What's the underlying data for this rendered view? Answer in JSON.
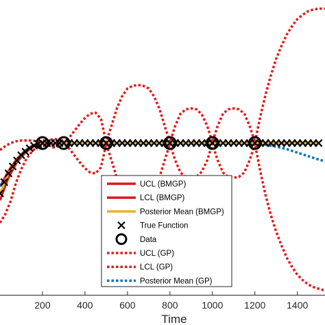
{
  "chart_data": {
    "type": "line",
    "title": "",
    "xlabel": "Time",
    "ylabel": "",
    "xlim": [
      0,
      1530
    ],
    "xticks": [
      200,
      400,
      600,
      800,
      1000,
      1200,
      1400
    ],
    "grid": false,
    "legend_location": "bottom-center",
    "data_x": [
      0,
      50,
      100,
      150,
      200,
      300,
      500,
      650,
      800,
      1000,
      1200,
      1500
    ],
    "series": [
      {
        "name": "UCL (BMGP)",
        "color": "#d7191c",
        "style": "solid",
        "x": [
          0,
          40,
          80,
          120,
          160,
          200,
          250,
          300,
          350,
          400,
          450,
          500,
          550,
          600,
          650,
          700,
          750,
          800,
          850,
          900,
          950,
          1000,
          1050,
          1100,
          1150,
          1200,
          1250,
          1300,
          1350,
          1400,
          1450,
          1500
        ],
        "values": [
          0.3,
          0.48,
          0.62,
          0.72,
          0.78,
          0.8,
          0.8,
          0.8,
          0.8,
          0.8,
          0.8,
          0.8,
          0.8,
          0.8,
          0.8,
          0.8,
          0.8,
          0.8,
          0.8,
          0.8,
          0.8,
          0.8,
          0.8,
          0.8,
          0.8,
          0.8,
          0.8,
          0.8,
          0.8,
          0.8,
          0.8,
          0.8
        ]
      },
      {
        "name": "LCL (BMGP)",
        "color": "#d7191c",
        "style": "solid",
        "x": [
          0,
          40,
          80,
          120,
          160,
          200,
          250,
          300,
          350,
          400,
          450,
          500,
          550,
          600,
          650,
          700,
          750,
          800,
          850,
          900,
          950,
          1000,
          1050,
          1100,
          1150,
          1200,
          1250,
          1300,
          1350,
          1400,
          1450,
          1500
        ],
        "values": [
          0.14,
          0.4,
          0.58,
          0.69,
          0.765,
          0.8,
          0.8,
          0.8,
          0.8,
          0.8,
          0.8,
          0.8,
          0.8,
          0.8,
          0.8,
          0.8,
          0.8,
          0.8,
          0.8,
          0.8,
          0.8,
          0.8,
          0.8,
          0.8,
          0.8,
          0.8,
          0.8,
          0.8,
          0.8,
          0.8,
          0.8,
          0.8
        ]
      },
      {
        "name": "Posterior Mean (BMGP)",
        "color": "#edb120",
        "style": "solid",
        "x": [
          0,
          40,
          80,
          120,
          160,
          200,
          250,
          300,
          400,
          500,
          650,
          800,
          1000,
          1200,
          1350,
          1500
        ],
        "values": [
          0.22,
          0.45,
          0.6,
          0.7,
          0.77,
          0.8,
          0.8,
          0.8,
          0.8,
          0.8,
          0.8,
          0.8,
          0.8,
          0.8,
          0.8,
          0.8
        ]
      },
      {
        "name": "True Function",
        "color": "#000000",
        "style": "marker-x",
        "x": [
          0,
          20,
          40,
          60,
          80,
          100,
          120,
          140,
          160,
          180,
          200,
          220,
          240,
          260,
          280,
          300,
          325,
          350,
          375,
          400,
          425,
          450,
          475,
          500,
          525,
          550,
          575,
          600,
          625,
          650,
          675,
          700,
          725,
          750,
          775,
          800,
          825,
          850,
          875,
          900,
          925,
          950,
          975,
          1000,
          1025,
          1050,
          1075,
          1100,
          1125,
          1150,
          1175,
          1200,
          1225,
          1250,
          1275,
          1300,
          1325,
          1350,
          1375,
          1400,
          1425,
          1450,
          1475,
          1500
        ],
        "values": [
          0.22,
          0.35,
          0.45,
          0.53,
          0.6,
          0.66,
          0.7,
          0.74,
          0.77,
          0.79,
          0.8,
          0.8,
          0.8,
          0.8,
          0.8,
          0.8,
          0.8,
          0.8,
          0.8,
          0.8,
          0.8,
          0.8,
          0.8,
          0.8,
          0.8,
          0.8,
          0.8,
          0.8,
          0.8,
          0.8,
          0.8,
          0.8,
          0.8,
          0.8,
          0.8,
          0.8,
          0.8,
          0.8,
          0.8,
          0.8,
          0.8,
          0.8,
          0.8,
          0.8,
          0.8,
          0.8,
          0.8,
          0.8,
          0.8,
          0.8,
          0.8,
          0.8,
          0.8,
          0.8,
          0.8,
          0.8,
          0.8,
          0.8,
          0.8,
          0.8,
          0.8,
          0.8,
          0.8,
          0.8
        ]
      },
      {
        "name": "Data",
        "color": "#000000",
        "style": "marker-o",
        "x": [
          200,
          300,
          500,
          800,
          1000,
          1200
        ],
        "values": [
          0.8,
          0.8,
          0.8,
          0.8,
          0.8,
          0.8
        ]
      },
      {
        "name": "UCL (GP)",
        "color": "#e31a1c",
        "style": "dotted",
        "x": [
          0,
          25,
          50,
          75,
          100,
          125,
          150,
          175,
          200,
          225,
          250,
          275,
          300,
          325,
          350,
          375,
          400,
          425,
          450,
          475,
          500,
          525,
          550,
          575,
          600,
          625,
          650,
          675,
          700,
          725,
          750,
          775,
          800,
          825,
          850,
          875,
          900,
          925,
          950,
          975,
          1000,
          1025,
          1050,
          1075,
          1100,
          1125,
          1150,
          1175,
          1200,
          1225,
          1250,
          1275,
          1300,
          1325,
          1350,
          1375,
          1400,
          1425,
          1450,
          1475,
          1500,
          1530
        ],
        "values": [
          0.72,
          0.765,
          0.8,
          0.82,
          0.83,
          0.83,
          0.83,
          0.82,
          0.81,
          0.82,
          0.85,
          0.84,
          0.81,
          0.86,
          0.94,
          1.02,
          1.09,
          1.14,
          1.15,
          1.08,
          0.81,
          1.0,
          1.2,
          1.34,
          1.43,
          1.46,
          1.47,
          1.46,
          1.43,
          1.34,
          1.2,
          1.0,
          0.81,
          1.0,
          1.14,
          1.19,
          1.2,
          1.19,
          1.13,
          1.0,
          0.81,
          1.0,
          1.14,
          1.19,
          1.2,
          1.19,
          1.14,
          1.0,
          0.81,
          1.1,
          1.36,
          1.58,
          1.77,
          1.92,
          2.05,
          2.15,
          2.23,
          2.28,
          2.32,
          2.34,
          2.35,
          2.35
        ]
      },
      {
        "name": "LCL (GP)",
        "color": "#e31a1c",
        "style": "dotted",
        "x": [
          0,
          25,
          50,
          75,
          100,
          125,
          150,
          175,
          200,
          225,
          250,
          275,
          300,
          325,
          350,
          375,
          400,
          425,
          450,
          475,
          500,
          525,
          550,
          575,
          600,
          625,
          650,
          675,
          700,
          725,
          750,
          775,
          800,
          825,
          850,
          875,
          900,
          925,
          950,
          975,
          1000,
          1025,
          1050,
          1075,
          1100,
          1125,
          1150,
          1175,
          1200,
          1225,
          1250,
          1275,
          1300,
          1325,
          1350,
          1375,
          1400,
          1425,
          1450,
          1475,
          1500,
          1530
        ],
        "values": [
          -0.12,
          -0.02,
          0.13,
          0.34,
          0.5,
          0.62,
          0.7,
          0.76,
          0.79,
          0.78,
          0.75,
          0.76,
          0.79,
          0.74,
          0.66,
          0.58,
          0.51,
          0.46,
          0.45,
          0.52,
          0.79,
          0.6,
          0.4,
          0.26,
          0.17,
          0.14,
          0.13,
          0.14,
          0.17,
          0.26,
          0.4,
          0.6,
          0.79,
          0.6,
          0.46,
          0.41,
          0.4,
          0.41,
          0.47,
          0.6,
          0.79,
          0.6,
          0.46,
          0.41,
          0.4,
          0.41,
          0.46,
          0.6,
          0.79,
          0.48,
          0.2,
          -0.03,
          -0.22,
          -0.38,
          -0.52,
          -0.63,
          -0.72,
          -0.78,
          -0.83,
          -0.86,
          -0.88,
          -0.9
        ]
      },
      {
        "name": "Posterior Mean (GP)",
        "color": "#0072bd",
        "style": "dotted",
        "x": [
          0,
          25,
          50,
          75,
          100,
          125,
          150,
          175,
          200,
          250,
          300,
          400,
          500,
          650,
          800,
          1000,
          1200,
          1250,
          1300,
          1350,
          1400,
          1450,
          1500,
          1530
        ],
        "values": [
          0.3,
          0.38,
          0.47,
          0.58,
          0.66,
          0.72,
          0.76,
          0.78,
          0.8,
          0.8,
          0.8,
          0.8,
          0.8,
          0.8,
          0.8,
          0.8,
          0.8,
          0.78,
          0.76,
          0.73,
          0.69,
          0.65,
          0.61,
          0.59
        ]
      }
    ]
  }
}
